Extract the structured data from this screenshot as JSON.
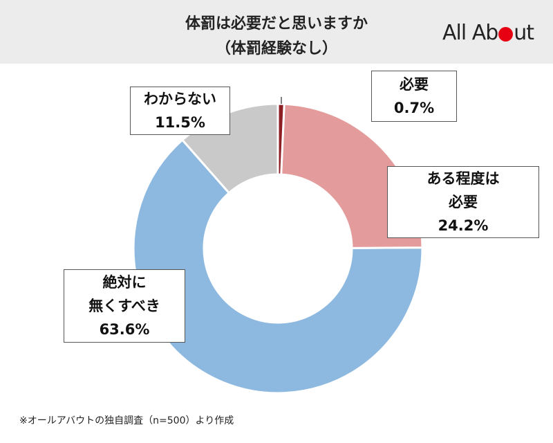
{
  "chart_data": {
    "type": "donut",
    "title": "体罰は必要だと思いますか",
    "subtitle": "（体罰経験なし）",
    "logo": [
      "All Ab",
      "ut"
    ],
    "categories": [
      "必要",
      "ある程度は\n必要",
      "絶対に\n無くすべき",
      "わからない"
    ],
    "values": [
      0.7,
      24.2,
      63.6,
      11.5
    ],
    "value_labels": [
      "0.7%",
      "24.2%",
      "63.6%",
      "11.5%"
    ],
    "colors": [
      "#8e1f24",
      "#e49b9b",
      "#8db9e0",
      "#c9c9c9"
    ],
    "note": "※オールアバウトの独自調査（n=500）より作成"
  }
}
